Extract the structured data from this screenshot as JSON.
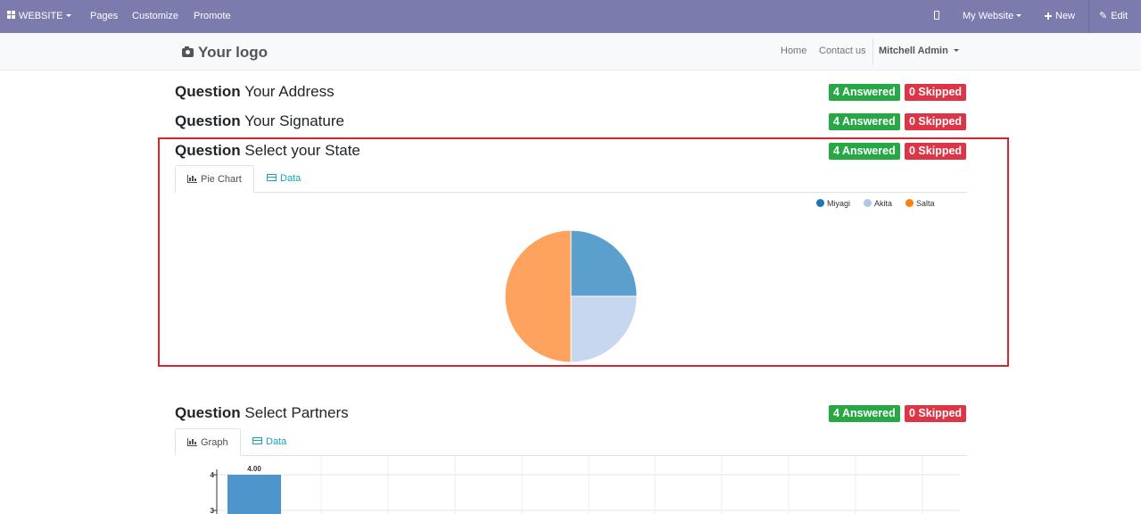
{
  "topbar": {
    "website_label": "WEBSITE",
    "pages_label": "Pages",
    "customize_label": "Customize",
    "promote_label": "Promote",
    "my_website_label": "My Website",
    "new_label": "New",
    "edit_label": "Edit"
  },
  "header": {
    "logo_text": "Your logo",
    "nav": {
      "home": "Home",
      "contact": "Contact us",
      "user": "Mitchell Admin"
    }
  },
  "questions": [
    {
      "prefix": "Question",
      "title": "Your Address",
      "answered": "4 Answered",
      "skipped": "0 Skipped"
    },
    {
      "prefix": "Question",
      "title": "Your Signature",
      "answered": "4 Answered",
      "skipped": "0 Skipped"
    },
    {
      "prefix": "Question",
      "title": "Select your State",
      "answered": "4 Answered",
      "skipped": "0 Skipped",
      "tabs": {
        "chart": "Pie Chart",
        "data": "Data"
      }
    },
    {
      "prefix": "Question",
      "title": "Select Partners",
      "answered": "4 Answered",
      "skipped": "0 Skipped",
      "tabs": {
        "chart": "Graph",
        "data": "Data"
      }
    }
  ],
  "colors": {
    "topbar": "#7c7bad",
    "answered": "#28a745",
    "skipped": "#dc3545",
    "highlight": "#d9262a",
    "tab_link": "#17a2b8"
  },
  "chart_data": [
    {
      "type": "pie",
      "title": "",
      "categories": [
        "Miyagi",
        "Akita",
        "Salta"
      ],
      "values": [
        1,
        1,
        2
      ],
      "colors": [
        "#5b9fcc",
        "#c6d7ef",
        "#fda35d"
      ],
      "legend_colors": [
        "#1f77b4",
        "#aec7e8",
        "#ff7f0e"
      ],
      "legend": "top-right"
    },
    {
      "type": "bar",
      "title": "",
      "categories": [
        ""
      ],
      "values": [
        4.0
      ],
      "value_labels": [
        "4.00"
      ],
      "yticks": [
        "3",
        "4"
      ],
      "ylim_visible": [
        3,
        4
      ],
      "color": "#4d96cc",
      "grid": true
    }
  ]
}
